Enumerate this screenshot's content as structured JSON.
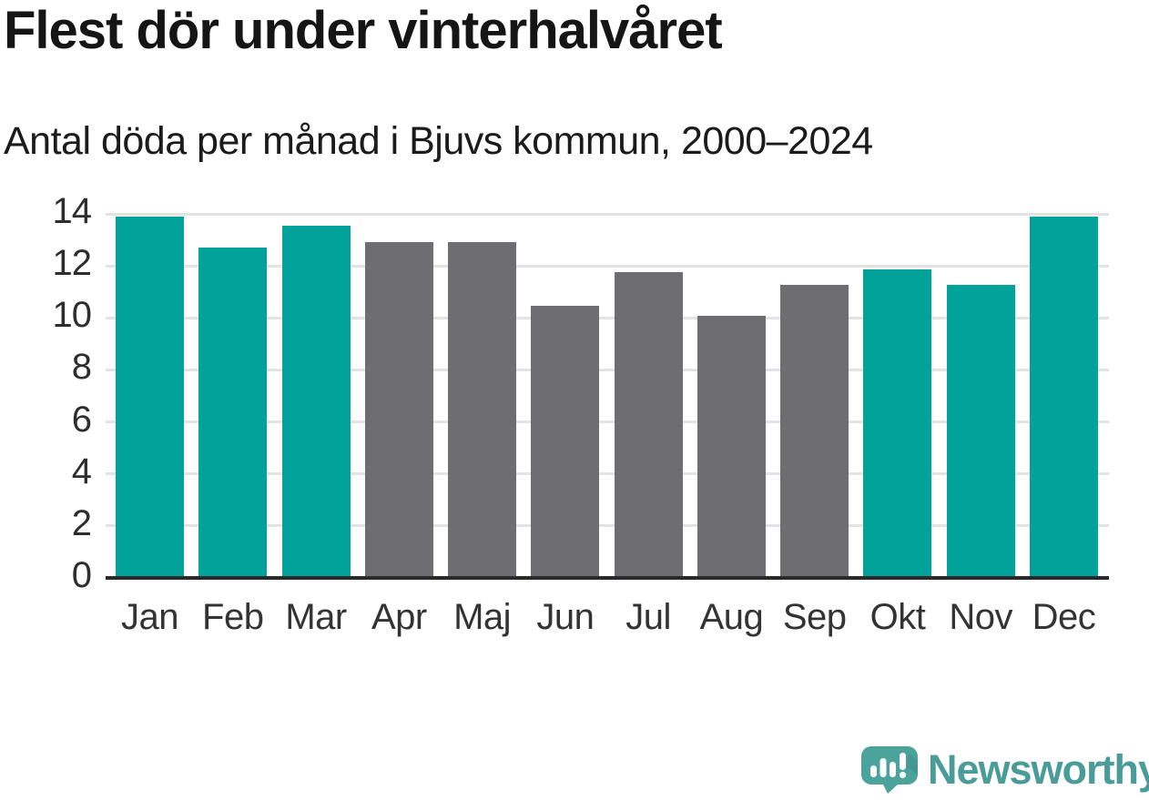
{
  "header": {
    "title": "Flest dör under vinterhalvåret",
    "subtitle": "Antal döda per månad i Bjuvs kommun, 2000–2024"
  },
  "chart_data": {
    "type": "bar",
    "title": "Flest dör under vinterhalvåret",
    "subtitle": "Antal döda per månad i Bjuvs kommun, 2000–2024",
    "categories": [
      "Jan",
      "Feb",
      "Mar",
      "Apr",
      "Maj",
      "Jun",
      "Jul",
      "Aug",
      "Sep",
      "Okt",
      "Nov",
      "Dec"
    ],
    "values": [
      13.88,
      12.72,
      13.56,
      12.92,
      12.92,
      10.48,
      11.76,
      10.08,
      11.28,
      11.88,
      11.28,
      13.88
    ],
    "highlighted": [
      true,
      true,
      true,
      false,
      false,
      false,
      false,
      false,
      false,
      true,
      true,
      true
    ],
    "xlabel": "",
    "ylabel": "",
    "ylim": [
      0,
      14
    ],
    "yticks": [
      0,
      2,
      4,
      6,
      8,
      10,
      12,
      14
    ],
    "grid": true,
    "legend": false,
    "colors": {
      "highlight": "#00A29A",
      "base": "#6D6D72",
      "gridline": "#e3e3e3",
      "axis_line": "#2a2a2a",
      "tick_label": "#2d2d2d"
    }
  },
  "footer": {
    "brand": "Newsworthy",
    "logo_icon": "speech-bubble-bar-chart-exclamation",
    "logo_icon_color": "#4BA39C",
    "brand_text_color": "#4A9C99"
  }
}
